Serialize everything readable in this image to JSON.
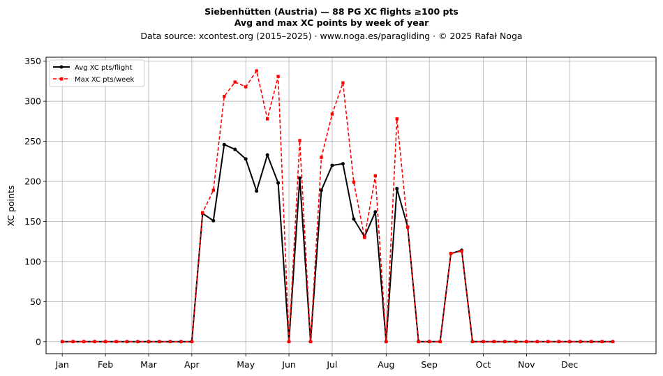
{
  "chart_data": {
    "type": "line",
    "title": "Siebenhütten (Austria)  —  88 PG XC flights ≥100 pts",
    "subtitle": "Avg and max XC points by week of year",
    "caption": "Data source: xcontest.org (2015–2025)  ·  www.noga.es/paragliding  ·  © 2025 Rafał Noga",
    "xlabel": "",
    "ylabel": "XC points",
    "ylim": [
      -15,
      355
    ],
    "xlim": [
      -1.5,
      55
    ],
    "yticks": [
      0,
      50,
      100,
      150,
      200,
      250,
      300,
      350
    ],
    "xticks": [
      {
        "label": "Jan",
        "x": 0
      },
      {
        "label": "Feb",
        "x": 4
      },
      {
        "label": "Mar",
        "x": 8
      },
      {
        "label": "Apr",
        "x": 12
      },
      {
        "label": "May",
        "x": 17
      },
      {
        "label": "Jun",
        "x": 21
      },
      {
        "label": "Jul",
        "x": 25
      },
      {
        "label": "Aug",
        "x": 30
      },
      {
        "label": "Sep",
        "x": 34
      },
      {
        "label": "Oct",
        "x": 39
      },
      {
        "label": "Nov",
        "x": 43
      },
      {
        "label": "Dec",
        "x": 47
      }
    ],
    "grid": true,
    "legend_position": "top-left",
    "x": [
      0,
      1,
      2,
      3,
      4,
      5,
      6,
      7,
      8,
      9,
      10,
      11,
      12,
      13,
      14,
      15,
      16,
      17,
      18,
      19,
      20,
      21,
      22,
      23,
      24,
      25,
      26,
      27,
      28,
      29,
      30,
      31,
      32,
      33,
      34,
      35,
      36,
      37,
      38,
      39,
      40,
      41,
      42,
      43,
      44,
      45,
      46,
      47,
      48,
      49,
      50,
      51
    ],
    "series": [
      {
        "name": "Avg XC pts/flight",
        "color": "#000000",
        "style": "solid",
        "marker": "circle",
        "values": [
          0,
          0,
          0,
          0,
          0,
          0,
          0,
          0,
          0,
          0,
          0,
          0,
          0,
          160,
          151,
          246,
          240,
          228,
          188,
          233,
          198,
          0,
          204,
          0,
          189,
          220,
          222,
          153,
          131,
          162,
          0,
          191,
          143,
          0,
          0,
          0,
          110,
          114,
          0,
          0,
          0,
          0,
          0,
          0,
          0,
          0,
          0,
          0,
          0,
          0,
          0,
          0
        ]
      },
      {
        "name": "Max XC pts/week",
        "color": "#ff0000",
        "style": "dashed",
        "marker": "square",
        "values": [
          0,
          0,
          0,
          0,
          0,
          0,
          0,
          0,
          0,
          0,
          0,
          0,
          0,
          161,
          189,
          306,
          324,
          318,
          338,
          278,
          331,
          0,
          251,
          0,
          230,
          284,
          323,
          199,
          130,
          207,
          0,
          278,
          143,
          0,
          0,
          0,
          110,
          113,
          0,
          0,
          0,
          0,
          0,
          0,
          0,
          0,
          0,
          0,
          0,
          0,
          0,
          0
        ]
      }
    ]
  }
}
